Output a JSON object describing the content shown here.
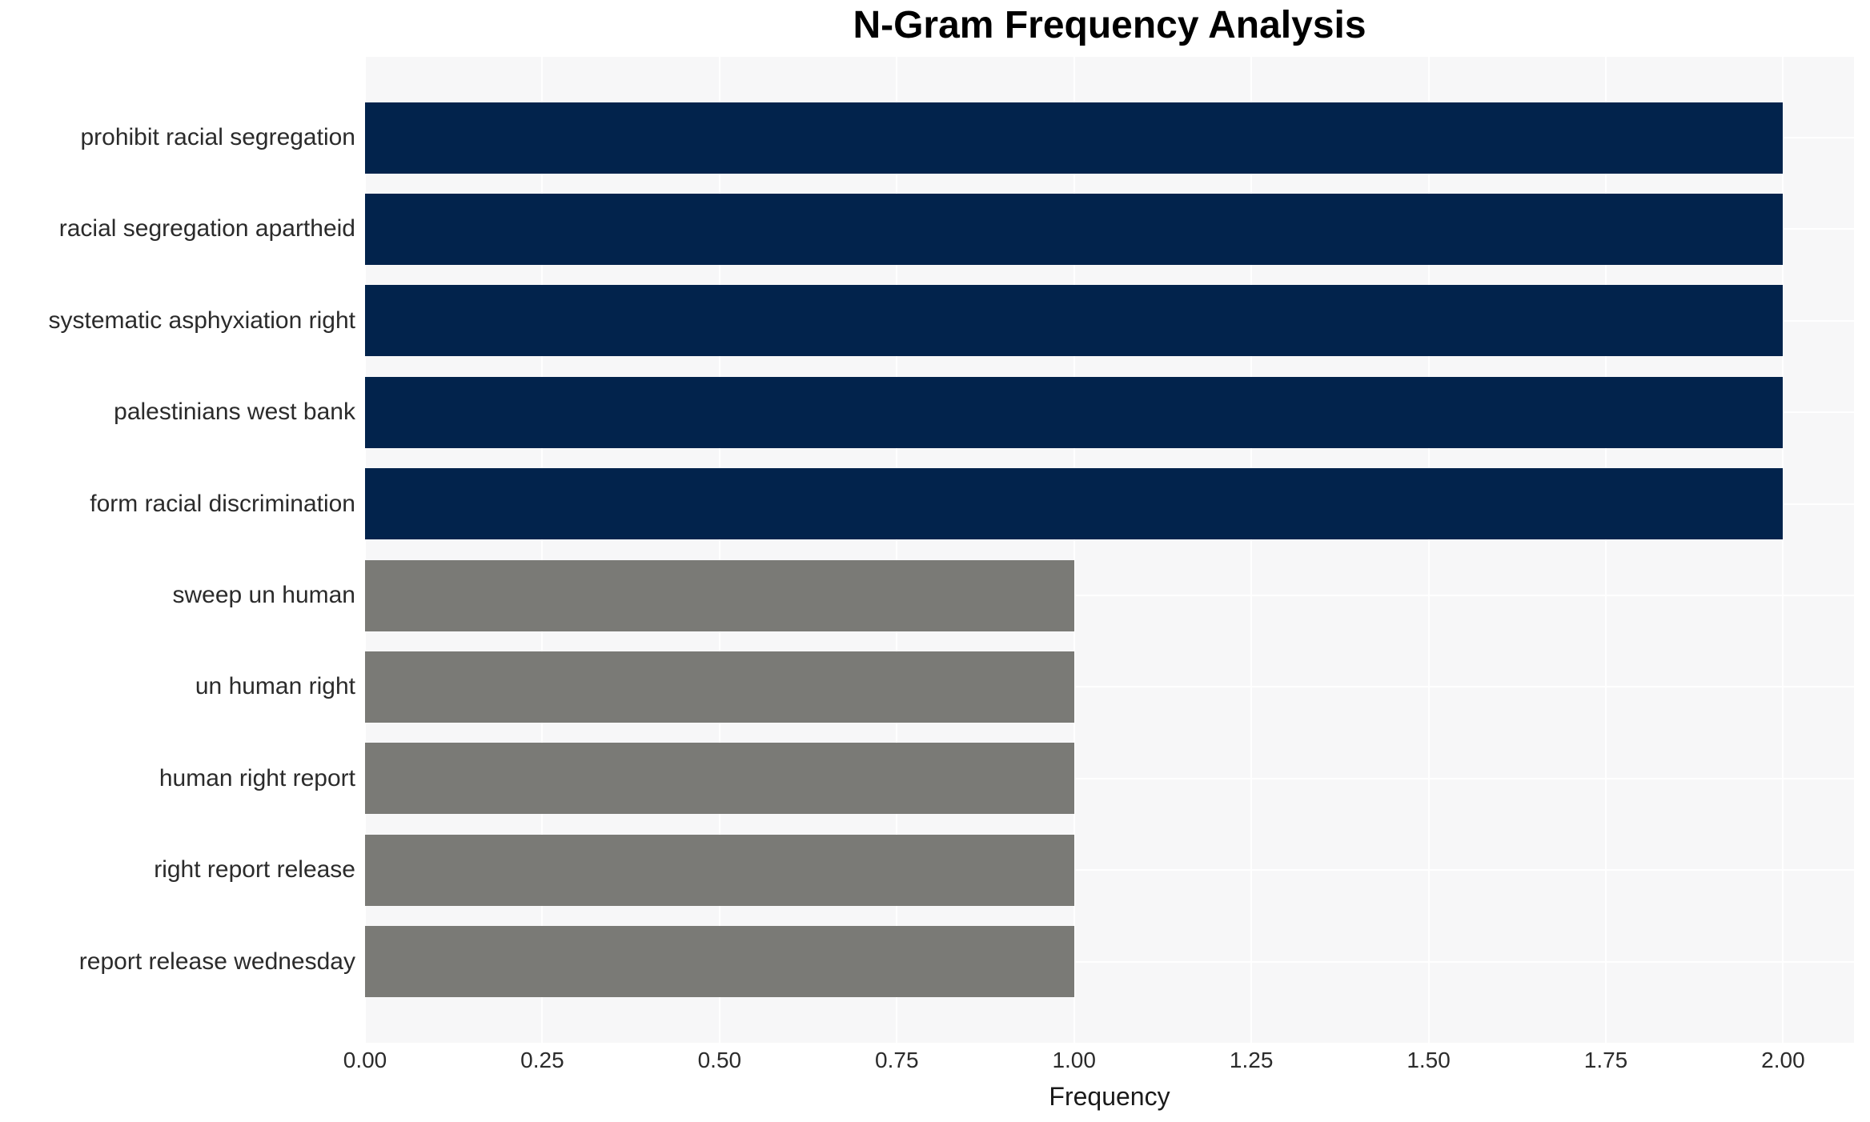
{
  "chart_data": {
    "type": "bar",
    "orientation": "horizontal",
    "title": "N-Gram Frequency Analysis",
    "xlabel": "Frequency",
    "ylabel": "",
    "categories": [
      "prohibit racial segregation",
      "racial segregation apartheid",
      "systematic asphyxiation right",
      "palestinians west bank",
      "form racial discrimination",
      "sweep un human",
      "un human right",
      "human right report",
      "right report release",
      "report release wednesday"
    ],
    "values": [
      2,
      2,
      2,
      2,
      2,
      1,
      1,
      1,
      1,
      1
    ],
    "bar_colors": [
      "#02234c",
      "#02234c",
      "#02234c",
      "#02234c",
      "#02234c",
      "#7a7a76",
      "#7a7a76",
      "#7a7a76",
      "#7a7a76",
      "#7a7a76"
    ],
    "xlim": [
      0,
      2.1
    ],
    "x_ticks": [
      0,
      0.25,
      0.5,
      0.75,
      1,
      1.25,
      1.5,
      1.75,
      2
    ],
    "x_tick_labels": [
      "0.00",
      "0.25",
      "0.50",
      "0.75",
      "1.00",
      "1.25",
      "1.50",
      "1.75",
      "2.00"
    ],
    "grid": true,
    "legend": false,
    "colors": {
      "bar_high": "#02234c",
      "bar_low": "#7a7a76",
      "plot_background": "#f7f7f8",
      "gridline": "#ffffff",
      "tick_text": "#2b2b2b",
      "title_text": "#000000"
    }
  }
}
